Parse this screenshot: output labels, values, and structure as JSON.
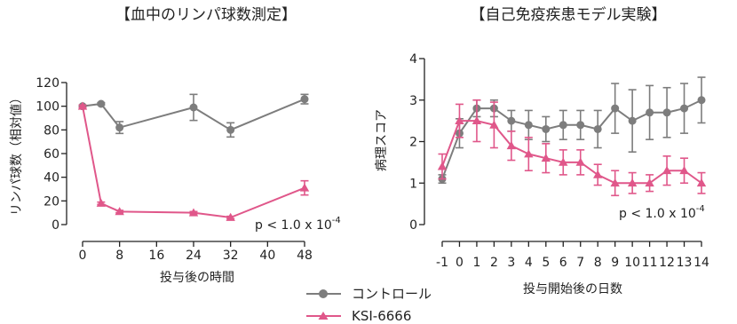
{
  "colors": {
    "control": "#7d7d7d",
    "ksi": "#e0578a"
  },
  "legend": [
    {
      "label": "コントロール",
      "marker": "circle",
      "color": "#7d7d7d"
    },
    {
      "label": "KSI-6666",
      "marker": "triangle",
      "color": "#e0578a"
    }
  ],
  "chart_data": [
    {
      "type": "line",
      "title": "【血中のリンパ球数測定】",
      "xlabel": "投与後の時間",
      "ylabel": "リンパ球数（相対値）",
      "xlim": [
        0,
        48
      ],
      "ylim": [
        0,
        120
      ],
      "xticks": [
        "0",
        "8",
        "16",
        "24",
        "32",
        "40",
        "48"
      ],
      "yticks": [
        "0",
        "20",
        "40",
        "60",
        "80",
        "100",
        "120"
      ],
      "annotation": {
        "prefix": "p < 1.0 x 10",
        "exponent": "-4"
      },
      "series": [
        {
          "name": "コントロール",
          "marker": "circle",
          "x": [
            0,
            4,
            8,
            24,
            32,
            48
          ],
          "y": [
            100,
            102,
            82,
            99,
            80,
            106
          ],
          "err": [
            1,
            1,
            5,
            11,
            6,
            4
          ]
        },
        {
          "name": "KSI-6666",
          "marker": "triangle",
          "x": [
            0,
            4,
            8,
            24,
            32,
            48
          ],
          "y": [
            100,
            18,
            11,
            10,
            6,
            31
          ],
          "err": [
            1,
            1,
            1,
            1,
            1,
            6
          ]
        }
      ]
    },
    {
      "type": "line",
      "title": "【自己免疫疾患モデル実験】",
      "xlabel": "投与開始後の日数",
      "ylabel": "病理スコア",
      "xlim": [
        -1,
        14
      ],
      "ylim": [
        0,
        4
      ],
      "xticks": [
        "-1",
        "0",
        "1",
        "2",
        "3",
        "4",
        "5",
        "6",
        "7",
        "8",
        "9",
        "10",
        "11",
        "12",
        "13",
        "14"
      ],
      "yticks": [
        "0",
        "1",
        "2",
        "3",
        "4"
      ],
      "annotation": {
        "prefix": "p < 1.0 x 10",
        "exponent": "-4"
      },
      "series": [
        {
          "name": "コントロール",
          "marker": "circle",
          "x": [
            -1,
            0,
            1,
            2,
            3,
            4,
            5,
            6,
            7,
            8,
            9,
            10,
            11,
            12,
            13,
            14
          ],
          "y": [
            1.1,
            2.2,
            2.8,
            2.8,
            2.5,
            2.4,
            2.3,
            2.4,
            2.4,
            2.3,
            2.8,
            2.5,
            2.7,
            2.7,
            2.8,
            3.0
          ],
          "err": [
            0.1,
            0.35,
            0.2,
            0.2,
            0.25,
            0.35,
            0.3,
            0.35,
            0.35,
            0.45,
            0.6,
            0.75,
            0.65,
            0.6,
            0.6,
            0.55
          ]
        },
        {
          "name": "KSI-6666",
          "marker": "triangle",
          "x": [
            -1,
            0,
            1,
            2,
            3,
            4,
            5,
            6,
            7,
            8,
            9,
            10,
            11,
            12,
            13,
            14
          ],
          "y": [
            1.4,
            2.5,
            2.5,
            2.4,
            1.9,
            1.7,
            1.6,
            1.5,
            1.5,
            1.2,
            1.0,
            1.0,
            1.0,
            1.3,
            1.3,
            1.0
          ],
          "err": [
            0.3,
            0.4,
            0.5,
            0.55,
            0.35,
            0.4,
            0.35,
            0.3,
            0.3,
            0.25,
            0.3,
            0.25,
            0.2,
            0.35,
            0.3,
            0.25
          ]
        }
      ]
    }
  ]
}
